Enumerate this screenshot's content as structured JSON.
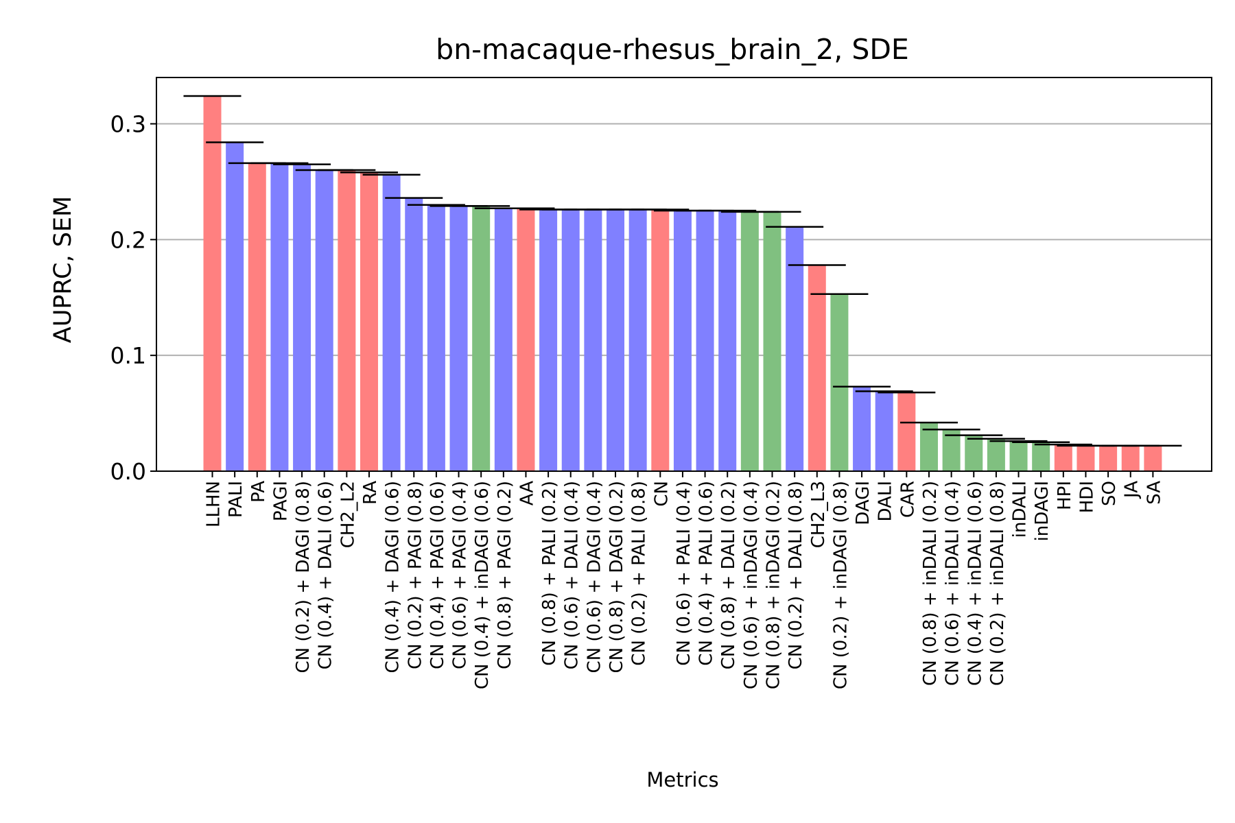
{
  "chart_data": {
    "type": "bar",
    "title": "bn-macaque-rhesus_brain_2, SDE",
    "xlabel": "Metrics",
    "ylabel": "AUPRC, SEM",
    "ylim": [
      0,
      0.34
    ],
    "yticks": [
      0.0,
      0.1,
      0.2,
      0.3
    ],
    "ytick_labels": [
      "0.0",
      "0.1",
      "0.2",
      "0.3"
    ],
    "grid": "horizontal",
    "colors": {
      "red": "#ff8080",
      "blue": "#8080ff",
      "green": "#80c080",
      "grid": "#b0b0b0",
      "errorbar": "#000000"
    },
    "categories": [
      "LLHN",
      "PALI",
      "PA",
      "PAGI",
      "CN (0.2) + DAGI (0.8)",
      "CN (0.4) + DALI (0.6)",
      "CH2_L2",
      "RA",
      "CN (0.4) + DAGI (0.6)",
      "CN (0.2) + PAGI (0.8)",
      "CN (0.4) + PAGI (0.6)",
      "CN (0.6) + PAGI (0.4)",
      "CN (0.4) + inDAGI (0.6)",
      "CN (0.8) + PAGI (0.2)",
      "AA",
      "CN (0.8) + PALI (0.2)",
      "CN (0.6) + DALI (0.4)",
      "CN (0.6) + DAGI (0.4)",
      "CN (0.8) + DAGI (0.2)",
      "CN (0.2) + PALI (0.8)",
      "CN",
      "CN (0.6) + PALI (0.4)",
      "CN (0.4) + PALI (0.6)",
      "CN (0.8) + DALI (0.2)",
      "CN (0.6) + inDAGI (0.4)",
      "CN (0.8) + inDAGI (0.2)",
      "CN (0.2) + DALI (0.8)",
      "CH2_L3",
      "CN (0.2) + inDAGI (0.8)",
      "DAGI",
      "DALI",
      "CAR",
      "CN (0.8) + inDALI (0.2)",
      "CN (0.6) + inDALI (0.4)",
      "CN (0.4) + inDALI (0.6)",
      "CN (0.2) + inDALI (0.8)",
      "inDALI",
      "inDAGI",
      "HPI",
      "HDI",
      "SO",
      "JA",
      "SA"
    ],
    "values": [
      0.324,
      0.284,
      0.266,
      0.266,
      0.265,
      0.26,
      0.26,
      0.258,
      0.256,
      0.236,
      0.23,
      0.229,
      0.229,
      0.227,
      0.227,
      0.226,
      0.226,
      0.226,
      0.226,
      0.226,
      0.226,
      0.225,
      0.225,
      0.225,
      0.224,
      0.224,
      0.211,
      0.178,
      0.153,
      0.073,
      0.069,
      0.068,
      0.042,
      0.036,
      0.031,
      0.028,
      0.026,
      0.025,
      0.023,
      0.022,
      0.022,
      0.022,
      0.022
    ],
    "bar_colors": [
      "red",
      "blue",
      "red",
      "blue",
      "blue",
      "blue",
      "red",
      "red",
      "blue",
      "blue",
      "blue",
      "blue",
      "green",
      "blue",
      "red",
      "blue",
      "blue",
      "blue",
      "blue",
      "blue",
      "red",
      "blue",
      "blue",
      "blue",
      "green",
      "green",
      "blue",
      "red",
      "green",
      "blue",
      "blue",
      "red",
      "green",
      "green",
      "green",
      "green",
      "green",
      "green",
      "red",
      "red",
      "red",
      "red",
      "red"
    ]
  }
}
